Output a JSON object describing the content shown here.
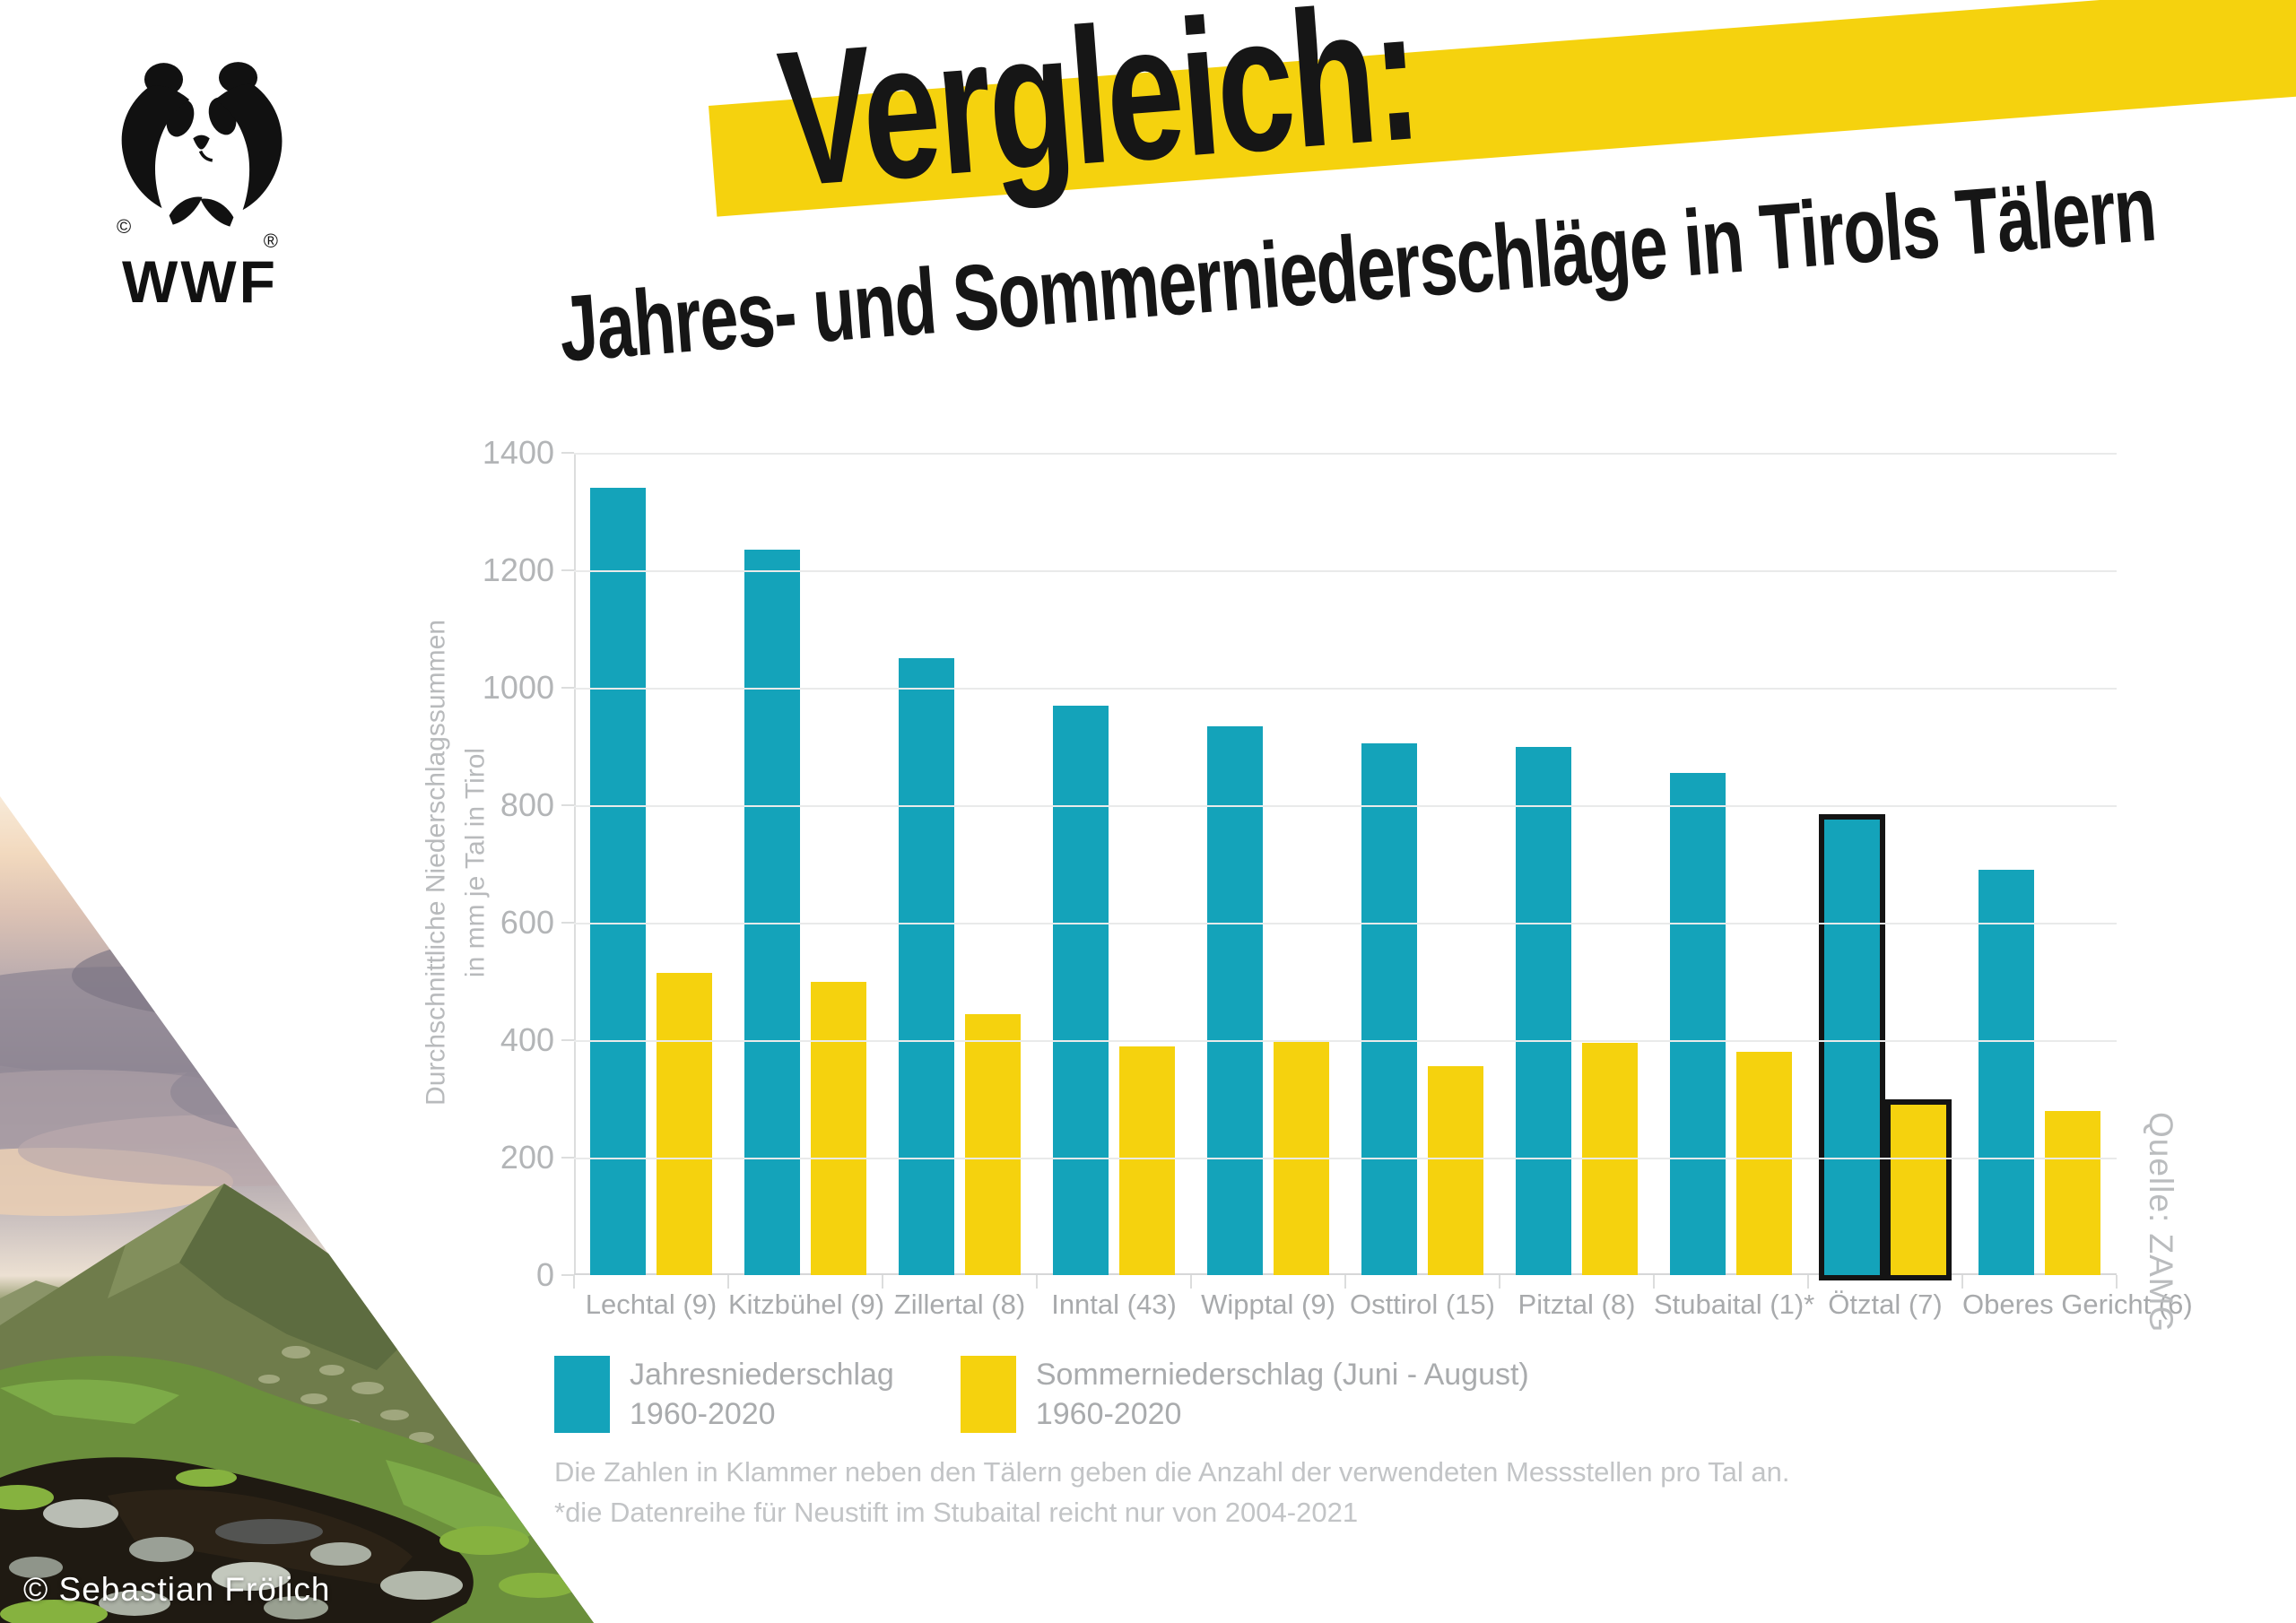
{
  "header": {
    "title": "Vergleich:",
    "subtitle": "Jahres- und Sommerniederschläge in Tirols Tälern",
    "highlight_color": "#f5d20e",
    "text_color": "#161616"
  },
  "logo": {
    "brand": "WWF",
    "registered_mark": "®",
    "copyright_mark": "©"
  },
  "chart_data": {
    "type": "bar",
    "title": "Jahres- und Sommerniederschläge in Tirols Tälern",
    "categories": [
      "Lechtal (9)",
      "Kitzbühel (9)",
      "Zillertal (8)",
      "Inntal (43)",
      "Wipptal (9)",
      "Osttirol (15)",
      "Pitztal (8)",
      "Stubaital (1)*",
      "Ötztal (7)",
      "Oberes Gericht (6)"
    ],
    "series": [
      {
        "name": "Jahresniederschlag 1960-2020",
        "color": "#14a3ba",
        "values": [
          1340,
          1235,
          1050,
          970,
          935,
          905,
          900,
          855,
          775,
          690
        ]
      },
      {
        "name": "Sommerniederschlag (Juni - August) 1960-2020",
        "color": "#f5d20e",
        "values": [
          515,
          500,
          445,
          390,
          400,
          355,
          395,
          380,
          290,
          280
        ]
      }
    ],
    "ylabel_line1": "Durchschnittliche Niederschlagssummen",
    "ylabel_line2": "in mm je Tal in Tirol",
    "xlabel": "",
    "ylim": [
      0,
      1400
    ],
    "y_ticks": [
      1400,
      1200,
      1000,
      800,
      600,
      400,
      200,
      0
    ],
    "grid": true,
    "legend_position": "bottom-left",
    "highlighted_category_index": 8,
    "highlight_outline_color": "#141414"
  },
  "legend": {
    "items": [
      {
        "label": "Jahresniederschlag",
        "period": "1960-2020",
        "color": "#14a3ba"
      },
      {
        "label": "Sommerniederschlag (Juni - August)",
        "period": "1960-2020",
        "color": "#f5d20e"
      }
    ]
  },
  "footnotes": {
    "line1": "Die Zahlen in Klammer neben den Tälern geben die Anzahl der verwendeten Messstellen pro Tal an.",
    "line2": "*die Datenreihe für Neustift im Stubaital reicht nur von 2004-2021"
  },
  "source": "Quelle: ZAMG",
  "photo": {
    "credit": "© Sebastian Frölich"
  }
}
